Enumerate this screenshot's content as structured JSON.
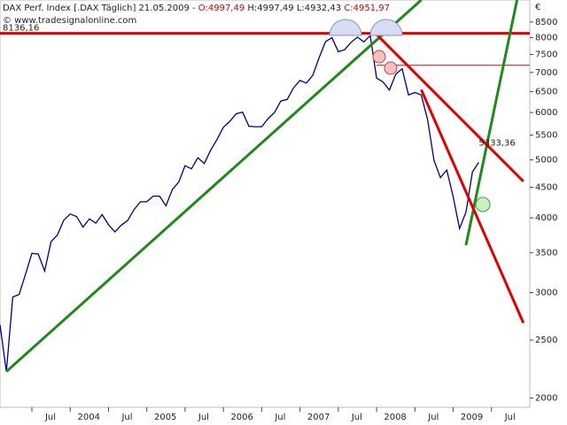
{
  "chart_data": {
    "type": "line",
    "title": "DAX Perf. Index [.DAX  Täglich] 21.05.2009 -",
    "quote": [
      "O:4997,49",
      "H:4997,49 L:4932,43",
      "C:4951,97"
    ],
    "subtitle": "© www.tradesignalonline.com",
    "y_unit": "€",
    "log_scale": true,
    "y_axis_side": "right",
    "x": [
      "2003-02",
      "2003-03",
      "2003-04",
      "2003-05",
      "2003-06",
      "2003-07",
      "2003-08",
      "2003-09",
      "2003-10",
      "2003-11",
      "2003-12",
      "2004-01",
      "2004-02",
      "2004-03",
      "2004-04",
      "2004-05",
      "2004-06",
      "2004-07",
      "2004-08",
      "2004-09",
      "2004-10",
      "2004-11",
      "2004-12",
      "2005-01",
      "2005-02",
      "2005-03",
      "2005-04",
      "2005-05",
      "2005-06",
      "2005-07",
      "2005-08",
      "2005-09",
      "2005-10",
      "2005-11",
      "2005-12",
      "2006-01",
      "2006-02",
      "2006-03",
      "2006-04",
      "2006-05",
      "2006-06",
      "2006-07",
      "2006-08",
      "2006-09",
      "2006-10",
      "2006-11",
      "2006-12",
      "2007-01",
      "2007-02",
      "2007-03",
      "2007-04",
      "2007-05",
      "2007-06",
      "2007-07",
      "2007-08",
      "2007-09",
      "2007-10",
      "2007-11",
      "2007-12",
      "2008-01",
      "2008-02",
      "2008-03",
      "2008-04",
      "2008-05",
      "2008-06",
      "2008-07",
      "2008-08",
      "2008-09",
      "2008-10",
      "2008-11",
      "2008-12",
      "2009-01",
      "2009-02",
      "2009-03",
      "2009-04",
      "2009-05"
    ],
    "series": [
      {
        "name": "DAX",
        "color": "#000080",
        "values": [
          2650,
          2215,
          2950,
          2980,
          3220,
          3490,
          3480,
          3260,
          3650,
          3745,
          3965,
          4060,
          4020,
          3860,
          3985,
          3920,
          4050,
          3895,
          3790,
          3890,
          3960,
          4130,
          4256,
          4255,
          4350,
          4350,
          4190,
          4460,
          4590,
          4890,
          4830,
          5040,
          4930,
          5190,
          5410,
          5670,
          5800,
          5970,
          6010,
          5690,
          5680,
          5680,
          5860,
          6000,
          6270,
          6310,
          6600,
          6790,
          6720,
          6920,
          7410,
          7880,
          8000,
          7580,
          7640,
          7860,
          8020,
          7870,
          8070,
          6850,
          6750,
          6540,
          6950,
          7100,
          6420,
          6480,
          6420,
          5830,
          4990,
          4670,
          4810,
          4340,
          3840,
          4090,
          4770,
          4952
        ]
      }
    ],
    "xlim": [
      "2003-02",
      "2010-01"
    ],
    "xticks": [
      {
        "value": "2003-07",
        "label": "Jul"
      },
      {
        "value": "2004-01",
        "label": "2004"
      },
      {
        "value": "2004-07",
        "label": "Jul"
      },
      {
        "value": "2005-01",
        "label": "2005"
      },
      {
        "value": "2005-07",
        "label": "Jul"
      },
      {
        "value": "2006-01",
        "label": "2006"
      },
      {
        "value": "2006-07",
        "label": "Jul"
      },
      {
        "value": "2007-01",
        "label": "2007"
      },
      {
        "value": "2007-07",
        "label": "Jul"
      },
      {
        "value": "2008-01",
        "label": "2008"
      },
      {
        "value": "2008-07",
        "label": "Jul"
      },
      {
        "value": "2009-01",
        "label": "2009"
      },
      {
        "value": "2009-07",
        "label": "Jul"
      }
    ],
    "ylim": [
      1930,
      9250
    ],
    "yticks": [
      2000,
      2500,
      3000,
      3500,
      4000,
      4500,
      5000,
      5500,
      6000,
      6500,
      7000,
      7500,
      8000,
      8500
    ],
    "levels": [
      {
        "value": 8136.16,
        "label": "8136,16",
        "color": "#e00000",
        "width": 3
      },
      {
        "value": 7195,
        "from": "2008-01",
        "color": "#e00000",
        "width": 1
      }
    ],
    "trend_lines": [
      {
        "color": "#1e8a1e",
        "width": 3,
        "points": [
          {
            "x": "2003-03",
            "y": 2215
          },
          {
            "x": "2008-08",
            "y": 9250
          }
        ]
      },
      {
        "color": "#1e8a1e",
        "width": 3,
        "points": [
          {
            "x": "2009-03",
            "y": 3600
          },
          {
            "x": "2009-11",
            "y": 9250
          }
        ]
      },
      {
        "color": "#e00000",
        "width": 3,
        "points": [
          {
            "x": "2008-01",
            "y": 8100
          },
          {
            "x": "2009-12",
            "y": 4603
          }
        ]
      },
      {
        "color": "#e00000",
        "width": 3,
        "points": [
          {
            "x": "2008-08",
            "y": 6550
          },
          {
            "x": "2009-12",
            "y": 2670
          }
        ]
      }
    ],
    "annotations": [
      {
        "x": "2009-05",
        "y": 5333.36,
        "label": "5333,36",
        "color": "#e00000"
      }
    ]
  }
}
